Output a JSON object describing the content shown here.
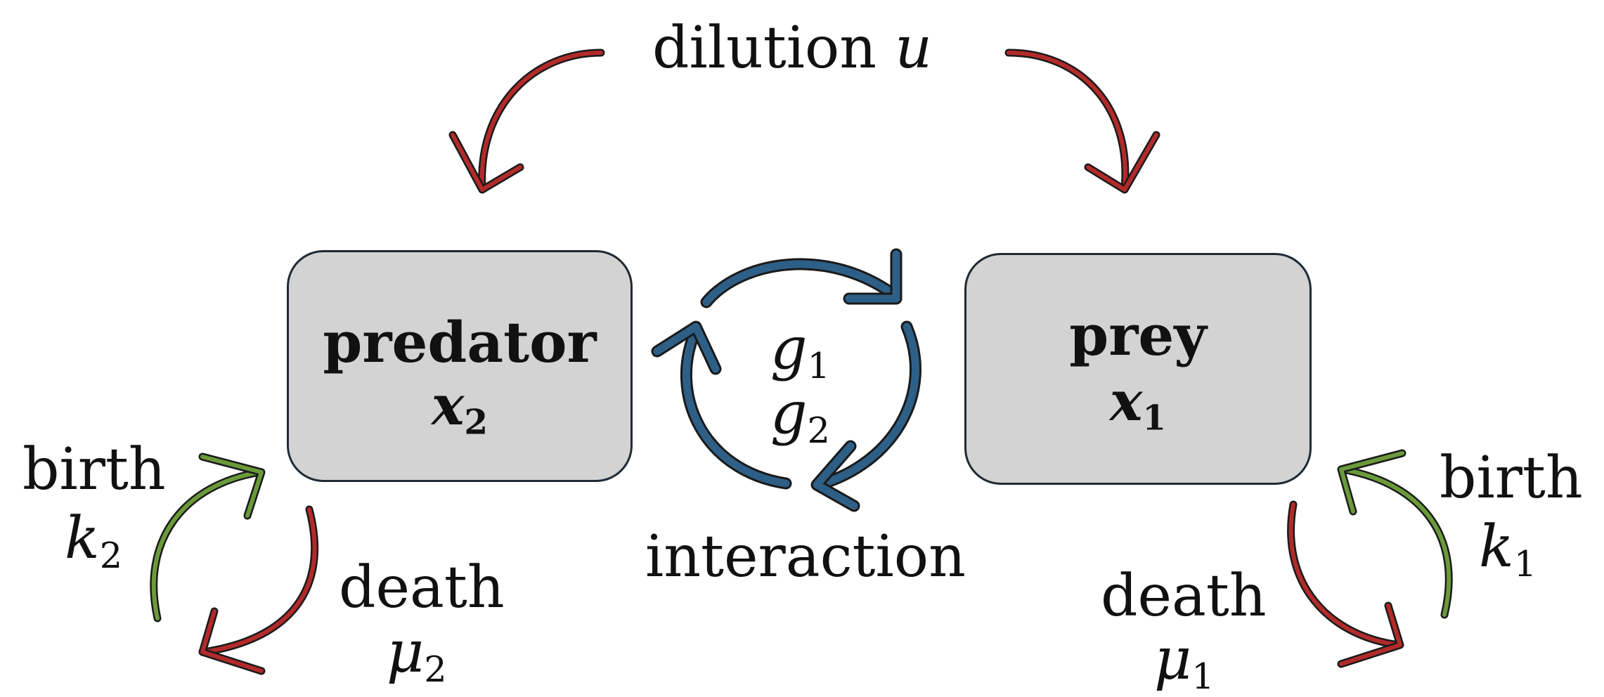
{
  "dilution": {
    "text": "dilution",
    "symbol": "u"
  },
  "predator": {
    "name": "predator",
    "var_base": "x",
    "var_sub": "2"
  },
  "prey": {
    "name": "prey",
    "var_base": "x",
    "var_sub": "1"
  },
  "interaction": {
    "label": "interaction",
    "g1_base": "g",
    "g1_sub": "1",
    "g2_base": "g",
    "g2_sub": "2"
  },
  "left": {
    "birth": "birth",
    "birth_base": "k",
    "birth_sub": "2",
    "death": "death",
    "death_base": "μ",
    "death_sub": "2"
  },
  "right": {
    "birth": "birth",
    "birth_base": "k",
    "birth_sub": "1",
    "death": "death",
    "death_base": "μ",
    "death_sub": "1"
  },
  "colors": {
    "red_arrow": "#b22a2a",
    "green_arrow": "#6a9a3a",
    "blue_arrow": "#2e5f86",
    "box_fill": "#d3d3d3",
    "box_border": "#1f2a35"
  }
}
